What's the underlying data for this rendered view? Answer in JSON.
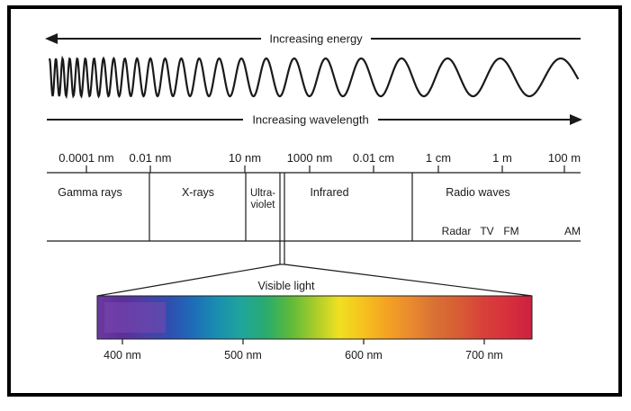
{
  "arrows": {
    "energy_label": "Increasing energy",
    "wavelength_label": "Increasing wavelength"
  },
  "scale": {
    "ticks": [
      "0.0001 nm",
      "0.01 nm",
      "10 nm",
      "1000 nm",
      "0.01 cm",
      "1 cm",
      "1 m",
      "100 m"
    ]
  },
  "regions": {
    "gamma": "Gamma rays",
    "xrays": "X-rays",
    "uv_line1": "Ultra-",
    "uv_line2": "violet",
    "infrared": "Infrared",
    "radio": "Radio waves",
    "radio_sub": [
      "Radar",
      "TV",
      "FM",
      "AM"
    ]
  },
  "visible": {
    "title": "Visible light",
    "ticks": [
      "400 nm",
      "500 nm",
      "600 nm",
      "700 nm"
    ],
    "colors": [
      "#6b3aa0",
      "#5b2f9a",
      "#4a3fa6",
      "#2f4fb0",
      "#1d6db8",
      "#1a8fb0",
      "#1fa59b",
      "#2aab6e",
      "#5cba3a",
      "#a6cc2a",
      "#f0e022",
      "#f6c21e",
      "#f4a224",
      "#e88a2e",
      "#d87035",
      "#d85c34",
      "#d8403a",
      "#d8303c",
      "#cc2040"
    ]
  }
}
